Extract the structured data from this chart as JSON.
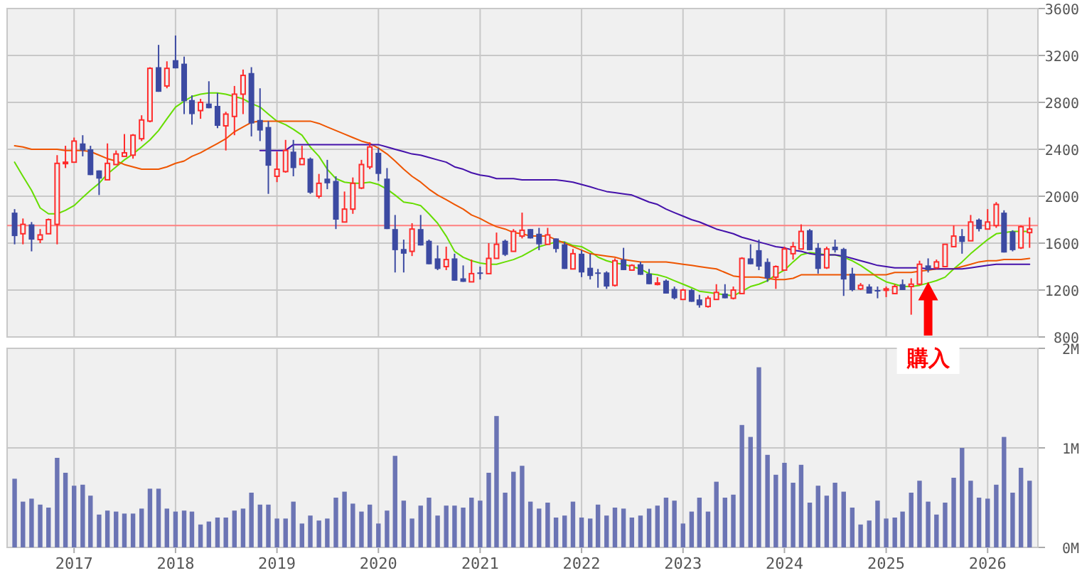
{
  "chart_data": [
    {
      "type": "candlestick",
      "tick_labels": "y",
      "grid": true,
      "colors": [
        "#3c4aa2",
        "#ff2b2b",
        "#3c4aa2",
        "#ff2b2b",
        "#ff2b2b",
        "#ff2b2b",
        "#ff2b2b",
        "#ff2b2b",
        "#3c4aa2",
        "#3c4aa2",
        "#3c4aa2",
        "#ff2b2b",
        "#ff2b2b",
        "#ff2b2b",
        "#ff2b2b",
        "#ff2b2b",
        "#ff2b2b",
        "#3c4aa2",
        "#ff2b2b",
        "#3c4aa2",
        "#3c4aa2",
        "#3c4aa2",
        "#ff2b2b",
        "#3c4aa2",
        "#3c4aa2",
        "#ff2b2b",
        "#ff2b2b",
        "#ff2b2b",
        "#3c4aa2",
        "#3c4aa2",
        "#3c4aa2",
        "#ff2b2b",
        "#ff2b2b",
        "#3c4aa2",
        "#ff2b2b",
        "#3c4aa2",
        "#ff2b2b",
        "#3c4aa2",
        "#3c4aa2",
        "#ff2b2b",
        "#ff2b2b",
        "#ff2b2b",
        "#ff2b2b",
        "#3c4aa2",
        "#3c4aa2",
        "#3c4aa2",
        "#3c4aa2",
        "#ff2b2b",
        "#3c4aa2",
        "#3c4aa2",
        "#3c4aa2",
        "#ff2b2b",
        "#3c4aa2",
        "#3c4aa2",
        "#ff2b2b",
        "#3c4aa2",
        "#ff2b2b",
        "#ff2b2b",
        "#3c4aa2",
        "#ff2b2b",
        "#ff2b2b",
        "#3c4aa2",
        "#3c4aa2",
        "#ff2b2b",
        "#3c4aa2",
        "#3c4aa2",
        "#ff2b2b",
        "#3c4aa2",
        "#3c4aa2",
        "#3c4aa2",
        "#3c4aa2",
        "#ff2b2b",
        "#3c4aa2",
        "#ff2b2b",
        "#3c4aa2",
        "#3c4aa2",
        "#ff2b2b",
        "#3c4aa2",
        "#3c4aa2",
        "#ff2b2b",
        "#3c4aa2",
        "#3c4aa2",
        "#ff2b2b",
        "#ff2b2b",
        "#3c4aa2",
        "#ff2b2b",
        "#ff2b2b",
        "#3c4aa2",
        "#3c4aa2",
        "#3c4aa2",
        "#ff2b2b",
        "#ff2b2b",
        "#ff2b2b",
        "#ff2b2b",
        "#3c4aa2",
        "#3c4aa2",
        "#ff2b2b",
        "#3c4aa2",
        "#3c4aa2",
        "#3c4aa2",
        "#ff2b2b",
        "#3c4aa2",
        "#3c4aa2",
        "#ff2b2b",
        "#ff2b2b",
        "#3c4aa2",
        "#ff2b2b",
        "#ff2b2b",
        "#3c4aa2",
        "#ff2b2b",
        "#ff2b2b",
        "#ff2b2b",
        "#3c4aa2",
        "#ff2b2b",
        "#3c4aa2",
        "#ff2b2b",
        "#ff2b2b",
        "#3c4aa2",
        "#3c4aa2",
        "#ff2b2b",
        "#ff2b2b"
      ],
      "x": [
        "2016-06",
        "2016-07",
        "2016-08",
        "2016-09",
        "2016-10",
        "2016-11",
        "2016-12",
        "2017-01",
        "2017-02",
        "2017-03",
        "2017-04",
        "2017-05",
        "2017-06",
        "2017-07",
        "2017-08",
        "2017-09",
        "2017-10",
        "2017-11",
        "2017-12",
        "2018-01",
        "2018-02",
        "2018-03",
        "2018-04",
        "2018-05",
        "2018-06",
        "2018-07",
        "2018-08",
        "2018-09",
        "2018-10",
        "2018-11",
        "2018-12",
        "2019-01",
        "2019-02",
        "2019-03",
        "2019-04",
        "2019-05",
        "2019-06",
        "2019-07",
        "2019-08",
        "2019-09",
        "2019-10",
        "2019-11",
        "2019-12",
        "2020-01",
        "2020-02",
        "2020-03",
        "2020-04",
        "2020-05",
        "2020-06",
        "2020-07",
        "2020-08",
        "2020-09",
        "2020-10",
        "2020-11",
        "2020-12",
        "2021-01",
        "2021-02",
        "2021-03",
        "2021-04",
        "2021-05",
        "2021-06",
        "2021-07",
        "2021-08",
        "2021-09",
        "2021-10",
        "2021-11",
        "2021-12",
        "2022-01",
        "2022-02",
        "2022-03",
        "2022-04",
        "2022-05",
        "2022-06",
        "2022-07",
        "2022-08",
        "2022-09",
        "2022-10",
        "2022-11",
        "2022-12",
        "2023-01",
        "2023-02",
        "2023-03",
        "2023-04",
        "2023-05",
        "2023-06",
        "2023-07",
        "2023-08",
        "2023-09",
        "2023-10",
        "2023-11",
        "2023-12",
        "2024-01",
        "2024-02",
        "2024-03",
        "2024-04",
        "2024-05",
        "2024-06",
        "2024-07",
        "2024-08",
        "2024-09",
        "2024-10",
        "2024-11",
        "2024-12",
        "2025-01",
        "2025-02",
        "2025-03",
        "2025-04",
        "2025-05",
        "2025-06",
        "2025-07",
        "2025-08",
        "2025-09",
        "2025-10",
        "2025-11",
        "2025-12",
        "2026-01",
        "2026-02",
        "2026-03",
        "2026-04",
        "2026-05",
        "2026-06"
      ],
      "ohlc": [
        [
          1860,
          1890,
          1590,
          1660
        ],
        [
          1680,
          1810,
          1590,
          1760
        ],
        [
          1760,
          1780,
          1530,
          1630
        ],
        [
          1630,
          1720,
          1600,
          1670
        ],
        [
          1680,
          1810,
          1680,
          1800
        ],
        [
          1760,
          2350,
          1590,
          2280
        ],
        [
          2280,
          2430,
          2240,
          2290
        ],
        [
          2290,
          2500,
          2290,
          2470
        ],
        [
          2450,
          2520,
          2340,
          2390
        ],
        [
          2400,
          2430,
          2180,
          2180
        ],
        [
          2220,
          2220,
          2010,
          2150
        ],
        [
          2140,
          2450,
          2140,
          2280
        ],
        [
          2270,
          2390,
          2270,
          2360
        ],
        [
          2340,
          2530,
          2340,
          2370
        ],
        [
          2350,
          2530,
          2320,
          2520
        ],
        [
          2490,
          2690,
          2470,
          2650
        ],
        [
          2640,
          3100,
          2630,
          3090
        ],
        [
          3100,
          3290,
          2890,
          2890
        ],
        [
          2940,
          3150,
          2920,
          3090
        ],
        [
          3160,
          3370,
          3090,
          3090
        ],
        [
          3130,
          3190,
          2700,
          2810
        ],
        [
          2820,
          2860,
          2610,
          2700
        ],
        [
          2730,
          2830,
          2660,
          2800
        ],
        [
          2790,
          2980,
          2750,
          2750
        ],
        [
          2770,
          2880,
          2580,
          2600
        ],
        [
          2600,
          2720,
          2390,
          2700
        ],
        [
          2680,
          2940,
          2520,
          2870
        ],
        [
          2870,
          3080,
          2700,
          3030
        ],
        [
          3050,
          3100,
          2510,
          2620
        ],
        [
          2650,
          2920,
          2470,
          2560
        ],
        [
          2590,
          2640,
          2020,
          2260
        ],
        [
          2170,
          2380,
          2120,
          2230
        ],
        [
          2210,
          2480,
          2200,
          2390
        ],
        [
          2380,
          2480,
          2170,
          2240
        ],
        [
          2270,
          2430,
          2270,
          2320
        ],
        [
          2320,
          2330,
          2020,
          2030
        ],
        [
          2000,
          2190,
          1980,
          2110
        ],
        [
          2150,
          2310,
          2060,
          2110
        ],
        [
          2130,
          2170,
          1720,
          1800
        ],
        [
          1780,
          2040,
          1780,
          1890
        ],
        [
          1890,
          2160,
          1850,
          2110
        ],
        [
          2070,
          2310,
          2060,
          2270
        ],
        [
          2250,
          2460,
          2230,
          2420
        ],
        [
          2370,
          2410,
          2130,
          2190
        ],
        [
          2150,
          2240,
          1720,
          1720
        ],
        [
          1720,
          1840,
          1350,
          1540
        ],
        [
          1550,
          1630,
          1350,
          1510
        ],
        [
          1530,
          1770,
          1490,
          1720
        ],
        [
          1720,
          1840,
          1580,
          1580
        ],
        [
          1620,
          1630,
          1420,
          1420
        ],
        [
          1470,
          1580,
          1370,
          1380
        ],
        [
          1400,
          1570,
          1370,
          1460
        ],
        [
          1470,
          1510,
          1280,
          1280
        ],
        [
          1300,
          1410,
          1270,
          1270
        ],
        [
          1270,
          1460,
          1270,
          1340
        ],
        [
          1350,
          1400,
          1290,
          1340
        ],
        [
          1340,
          1600,
          1340,
          1470
        ],
        [
          1470,
          1690,
          1470,
          1590
        ],
        [
          1620,
          1630,
          1490,
          1500
        ],
        [
          1530,
          1720,
          1530,
          1700
        ],
        [
          1660,
          1860,
          1640,
          1710
        ],
        [
          1720,
          1720,
          1640,
          1640
        ],
        [
          1680,
          1730,
          1540,
          1590
        ],
        [
          1590,
          1730,
          1590,
          1670
        ],
        [
          1640,
          1640,
          1520,
          1550
        ],
        [
          1590,
          1610,
          1380,
          1380
        ],
        [
          1380,
          1550,
          1380,
          1510
        ],
        [
          1510,
          1540,
          1310,
          1350
        ],
        [
          1390,
          1510,
          1290,
          1320
        ],
        [
          1350,
          1380,
          1220,
          1340
        ],
        [
          1350,
          1360,
          1210,
          1230
        ],
        [
          1240,
          1470,
          1230,
          1450
        ],
        [
          1460,
          1560,
          1370,
          1370
        ],
        [
          1370,
          1420,
          1370,
          1410
        ],
        [
          1420,
          1440,
          1330,
          1330
        ],
        [
          1340,
          1380,
          1250,
          1250
        ],
        [
          1250,
          1310,
          1240,
          1260
        ],
        [
          1280,
          1290,
          1170,
          1170
        ],
        [
          1210,
          1230,
          1120,
          1130
        ],
        [
          1120,
          1210,
          1120,
          1200
        ],
        [
          1200,
          1210,
          1100,
          1100
        ],
        [
          1120,
          1160,
          1050,
          1070
        ],
        [
          1060,
          1150,
          1050,
          1130
        ],
        [
          1120,
          1250,
          1120,
          1180
        ],
        [
          1170,
          1250,
          1130,
          1130
        ],
        [
          1130,
          1230,
          1120,
          1200
        ],
        [
          1170,
          1480,
          1170,
          1470
        ],
        [
          1470,
          1590,
          1420,
          1420
        ],
        [
          1540,
          1630,
          1370,
          1400
        ],
        [
          1440,
          1470,
          1270,
          1300
        ],
        [
          1310,
          1410,
          1210,
          1400
        ],
        [
          1370,
          1570,
          1370,
          1550
        ],
        [
          1510,
          1610,
          1460,
          1570
        ],
        [
          1550,
          1760,
          1550,
          1700
        ],
        [
          1710,
          1720,
          1540,
          1540
        ],
        [
          1560,
          1600,
          1340,
          1380
        ],
        [
          1390,
          1570,
          1380,
          1550
        ],
        [
          1570,
          1630,
          1520,
          1540
        ],
        [
          1550,
          1560,
          1150,
          1290
        ],
        [
          1340,
          1390,
          1190,
          1200
        ],
        [
          1210,
          1260,
          1200,
          1240
        ],
        [
          1230,
          1250,
          1170,
          1170
        ],
        [
          1200,
          1230,
          1130,
          1190
        ],
        [
          1200,
          1230,
          1140,
          1210
        ],
        [
          1170,
          1250,
          1170,
          1230
        ],
        [
          1250,
          1290,
          1200,
          1200
        ],
        [
          1230,
          1300,
          990,
          1250
        ],
        [
          1250,
          1450,
          1240,
          1420
        ],
        [
          1410,
          1470,
          1350,
          1370
        ],
        [
          1390,
          1460,
          1380,
          1440
        ],
        [
          1400,
          1590,
          1400,
          1590
        ],
        [
          1570,
          1750,
          1570,
          1660
        ],
        [
          1660,
          1720,
          1510,
          1610
        ],
        [
          1620,
          1840,
          1620,
          1780
        ],
        [
          1800,
          1810,
          1700,
          1720
        ],
        [
          1720,
          1890,
          1720,
          1780
        ],
        [
          1750,
          1950,
          1730,
          1930
        ],
        [
          1860,
          1880,
          1520,
          1520
        ],
        [
          1700,
          1710,
          1530,
          1540
        ],
        [
          1560,
          1750,
          1550,
          1740
        ],
        [
          1690,
          1820,
          1560,
          1720
        ]
      ],
      "series": [
        {
          "type": "line",
          "color": "#66dd00",
          "values": [
            2290,
            2170,
            2050,
            1900,
            1850,
            1850,
            1880,
            1920,
            1990,
            2050,
            2110,
            2190,
            2250,
            2310,
            2360,
            2420,
            2480,
            2560,
            2660,
            2760,
            2810,
            2850,
            2870,
            2880,
            2880,
            2870,
            2850,
            2830,
            2790,
            2760,
            2700,
            2640,
            2610,
            2570,
            2520,
            2420,
            2340,
            2230,
            2150,
            2120,
            2110,
            2110,
            2120,
            2100,
            2060,
            2010,
            1950,
            1940,
            1920,
            1850,
            1770,
            1660,
            1530,
            1480,
            1450,
            1430,
            1420,
            1420,
            1440,
            1460,
            1490,
            1530,
            1570,
            1590,
            1610,
            1610,
            1580,
            1570,
            1530,
            1480,
            1450,
            1430,
            1420,
            1400,
            1380,
            1340,
            1330,
            1310,
            1280,
            1250,
            1220,
            1190,
            1180,
            1170,
            1160,
            1150,
            1190,
            1230,
            1250,
            1280,
            1330,
            1370,
            1440,
            1500,
            1520,
            1510,
            1500,
            1500,
            1480,
            1450,
            1410,
            1360,
            1310,
            1270,
            1250,
            1230,
            1230,
            1240,
            1260,
            1280,
            1310,
            1380,
            1440,
            1510,
            1570,
            1630,
            1680,
            1690,
            1700,
            1700,
            1700
          ]
        },
        {
          "type": "line",
          "color": "#ee5500",
          "values": [
            2430,
            2420,
            2400,
            2400,
            2400,
            2400,
            2390,
            2390,
            2390,
            2380,
            2350,
            2320,
            2300,
            2270,
            2250,
            2230,
            2230,
            2230,
            2250,
            2280,
            2300,
            2340,
            2370,
            2410,
            2450,
            2490,
            2550,
            2590,
            2630,
            2640,
            2640,
            2640,
            2640,
            2640,
            2640,
            2640,
            2620,
            2590,
            2560,
            2530,
            2500,
            2470,
            2450,
            2410,
            2360,
            2300,
            2230,
            2170,
            2120,
            2060,
            2010,
            1970,
            1930,
            1890,
            1840,
            1810,
            1770,
            1740,
            1720,
            1690,
            1680,
            1660,
            1660,
            1660,
            1630,
            1600,
            1570,
            1540,
            1510,
            1500,
            1490,
            1480,
            1460,
            1450,
            1440,
            1440,
            1440,
            1440,
            1430,
            1420,
            1410,
            1400,
            1390,
            1380,
            1350,
            1320,
            1310,
            1310,
            1310,
            1300,
            1290,
            1290,
            1300,
            1330,
            1330,
            1330,
            1330,
            1330,
            1330,
            1330,
            1330,
            1330,
            1330,
            1330,
            1350,
            1350,
            1350,
            1360,
            1370,
            1380,
            1380,
            1380,
            1400,
            1420,
            1440,
            1450,
            1450,
            1460,
            1460,
            1460,
            1470
          ]
        },
        {
          "type": "line",
          "color": "#4411aa",
          "values": [
            null,
            null,
            null,
            null,
            null,
            null,
            null,
            null,
            null,
            null,
            null,
            null,
            null,
            null,
            null,
            null,
            null,
            null,
            null,
            null,
            null,
            null,
            null,
            null,
            null,
            null,
            null,
            null,
            null,
            2390,
            2390,
            2390,
            2390,
            2440,
            2440,
            2440,
            2440,
            2440,
            2440,
            2440,
            2440,
            2440,
            2440,
            2440,
            2420,
            2400,
            2380,
            2360,
            2350,
            2330,
            2310,
            2290,
            2250,
            2230,
            2200,
            2180,
            2170,
            2150,
            2150,
            2150,
            2140,
            2140,
            2140,
            2140,
            2140,
            2130,
            2120,
            2100,
            2080,
            2060,
            2040,
            2030,
            2020,
            2010,
            1980,
            1950,
            1930,
            1890,
            1860,
            1830,
            1800,
            1780,
            1750,
            1720,
            1700,
            1680,
            1650,
            1630,
            1610,
            1590,
            1570,
            1560,
            1540,
            1530,
            1510,
            1500,
            1500,
            1500,
            1490,
            1470,
            1450,
            1430,
            1410,
            1400,
            1390,
            1390,
            1390,
            1390,
            1380,
            1380,
            1380,
            1380,
            1380,
            1390,
            1400,
            1410,
            1420,
            1420,
            1420,
            1420,
            1420
          ]
        }
      ],
      "xlim": [
        "2016-05-05",
        "2026-07-01"
      ],
      "xticks": [
        {
          "value": "2017-01",
          "label": null
        },
        {
          "value": "2018-01",
          "label": null
        },
        {
          "value": "2019-01",
          "label": null
        },
        {
          "value": "2020-01",
          "label": null
        },
        {
          "value": "2021-01",
          "label": null
        },
        {
          "value": "2022-01",
          "label": null
        },
        {
          "value": "2023-01",
          "label": null
        },
        {
          "value": "2024-01",
          "label": null
        },
        {
          "value": "2025-01",
          "label": null
        },
        {
          "value": "2026-01",
          "label": null
        }
      ],
      "ylim": [
        800,
        3600
      ],
      "yticks": [
        800,
        1200,
        1600,
        2000,
        2400,
        2800,
        3200,
        3600
      ],
      "ref_lines": [
        {
          "axis": "y",
          "value": 1750,
          "color": "#ff8080"
        }
      ],
      "annotations": [
        {
          "text": "購入",
          "x": "2025-06",
          "y": 1270
        }
      ]
    },
    {
      "type": "bar",
      "grid": true,
      "color": "#6b74b4",
      "x": [
        "2016-06",
        "2016-07",
        "2016-08",
        "2016-09",
        "2016-10",
        "2016-11",
        "2016-12",
        "2017-01",
        "2017-02",
        "2017-03",
        "2017-04",
        "2017-05",
        "2017-06",
        "2017-07",
        "2017-08",
        "2017-09",
        "2017-10",
        "2017-11",
        "2017-12",
        "2018-01",
        "2018-02",
        "2018-03",
        "2018-04",
        "2018-05",
        "2018-06",
        "2018-07",
        "2018-08",
        "2018-09",
        "2018-10",
        "2018-11",
        "2018-12",
        "2019-01",
        "2019-02",
        "2019-03",
        "2019-04",
        "2019-05",
        "2019-06",
        "2019-07",
        "2019-08",
        "2019-09",
        "2019-10",
        "2019-11",
        "2019-12",
        "2020-01",
        "2020-02",
        "2020-03",
        "2020-04",
        "2020-05",
        "2020-06",
        "2020-07",
        "2020-08",
        "2020-09",
        "2020-10",
        "2020-11",
        "2020-12",
        "2021-01",
        "2021-02",
        "2021-03",
        "2021-04",
        "2021-05",
        "2021-06",
        "2021-07",
        "2021-08",
        "2021-09",
        "2021-10",
        "2021-11",
        "2021-12",
        "2022-01",
        "2022-02",
        "2022-03",
        "2022-04",
        "2022-05",
        "2022-06",
        "2022-07",
        "2022-08",
        "2022-09",
        "2022-10",
        "2022-11",
        "2022-12",
        "2023-01",
        "2023-02",
        "2023-03",
        "2023-04",
        "2023-05",
        "2023-06",
        "2023-07",
        "2023-08",
        "2023-09",
        "2023-10",
        "2023-11",
        "2023-12",
        "2024-01",
        "2024-02",
        "2024-03",
        "2024-04",
        "2024-05",
        "2024-06",
        "2024-07",
        "2024-08",
        "2024-09",
        "2024-10",
        "2024-11",
        "2024-12",
        "2025-01",
        "2025-02",
        "2025-03",
        "2025-04",
        "2025-05",
        "2025-06",
        "2025-07",
        "2025-08",
        "2025-09",
        "2025-10",
        "2025-11",
        "2025-12",
        "2026-01",
        "2026-02",
        "2026-03",
        "2026-04",
        "2026-05",
        "2026-06"
      ],
      "values": [
        0.69,
        0.46,
        0.49,
        0.43,
        0.4,
        0.9,
        0.75,
        0.62,
        0.63,
        0.52,
        0.33,
        0.37,
        0.36,
        0.34,
        0.34,
        0.39,
        0.59,
        0.59,
        0.39,
        0.36,
        0.37,
        0.36,
        0.23,
        0.26,
        0.3,
        0.3,
        0.37,
        0.39,
        0.55,
        0.43,
        0.43,
        0.29,
        0.29,
        0.46,
        0.24,
        0.32,
        0.27,
        0.29,
        0.5,
        0.56,
        0.44,
        0.36,
        0.43,
        0.24,
        0.37,
        0.92,
        0.47,
        0.29,
        0.42,
        0.5,
        0.32,
        0.42,
        0.42,
        0.4,
        0.5,
        0.47,
        0.75,
        1.32,
        0.55,
        0.76,
        0.82,
        0.46,
        0.39,
        0.45,
        0.3,
        0.32,
        0.46,
        0.3,
        0.29,
        0.43,
        0.32,
        0.4,
        0.39,
        0.3,
        0.32,
        0.39,
        0.42,
        0.5,
        0.47,
        0.24,
        0.36,
        0.5,
        0.36,
        0.66,
        0.5,
        0.53,
        1.23,
        1.11,
        1.81,
        0.93,
        0.73,
        0.85,
        0.65,
        0.83,
        0.45,
        0.62,
        0.52,
        0.65,
        0.56,
        0.4,
        0.23,
        0.27,
        0.47,
        0.29,
        0.3,
        0.36,
        0.55,
        0.67,
        0.46,
        0.33,
        0.45,
        0.7,
        1.0,
        0.67,
        0.5,
        0.49,
        0.63,
        1.11,
        0.55,
        0.8,
        0.67
      ],
      "xlim": [
        "2016-05-05",
        "2026-07-01"
      ],
      "xticks": [
        {
          "value": "2017-01",
          "label": "2017"
        },
        {
          "value": "2018-01",
          "label": "2018"
        },
        {
          "value": "2019-01",
          "label": "2019"
        },
        {
          "value": "2020-01",
          "label": "2020"
        },
        {
          "value": "2021-01",
          "label": "2021"
        },
        {
          "value": "2022-01",
          "label": "2022"
        },
        {
          "value": "2023-01",
          "label": "2023"
        },
        {
          "value": "2024-01",
          "label": "2024"
        },
        {
          "value": "2025-01",
          "label": "2025"
        },
        {
          "value": "2026-01",
          "label": "2026"
        }
      ],
      "ylim": [
        0,
        2
      ],
      "yticks": [
        {
          "value": 0,
          "label": "0M"
        },
        {
          "value": 1,
          "label": "1M"
        },
        {
          "value": 2,
          "label": "2M"
        }
      ]
    }
  ]
}
